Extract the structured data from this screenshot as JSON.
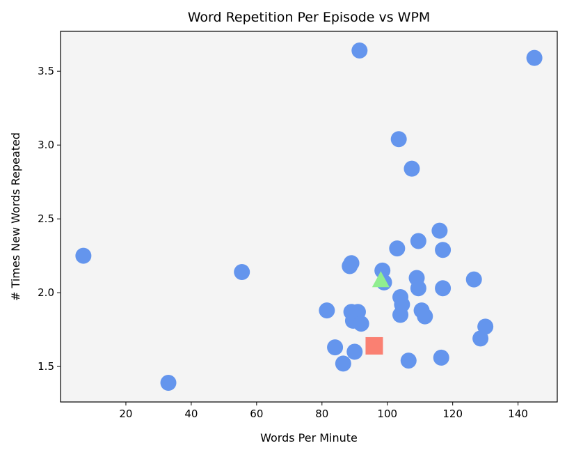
{
  "chart_data": {
    "type": "scatter",
    "title": "Word Repetition Per Episode vs WPM",
    "xlabel": "Words Per Minute",
    "ylabel": "# Times New Words Repeated",
    "xlim": [
      0,
      152
    ],
    "ylim": [
      1.26,
      3.77
    ],
    "xticks": [
      20,
      40,
      60,
      80,
      100,
      120,
      140
    ],
    "yticks": [
      1.5,
      2.0,
      2.5,
      3.0,
      3.5
    ],
    "ytick_labels": [
      "1.5",
      "2.0",
      "2.5",
      "3.0",
      "3.5"
    ],
    "grid": false,
    "background_color": "#f4f4f4",
    "series": [
      {
        "marker": "circle",
        "color": "#6495ed",
        "points": [
          [
            7,
            2.25
          ],
          [
            33,
            1.39
          ],
          [
            55.5,
            2.14
          ],
          [
            81.5,
            1.88
          ],
          [
            84,
            1.63
          ],
          [
            86.5,
            1.52
          ],
          [
            88.5,
            2.18
          ],
          [
            89,
            2.2
          ],
          [
            89,
            1.87
          ],
          [
            89.5,
            1.81
          ],
          [
            90,
            1.6
          ],
          [
            91,
            1.87
          ],
          [
            91.5,
            3.64
          ],
          [
            92,
            1.79
          ],
          [
            98.5,
            2.15
          ],
          [
            99,
            2.07
          ],
          [
            103,
            2.3
          ],
          [
            103.5,
            3.04
          ],
          [
            104,
            1.97
          ],
          [
            104,
            1.85
          ],
          [
            104.5,
            1.92
          ],
          [
            106.5,
            1.54
          ],
          [
            107.5,
            2.84
          ],
          [
            109,
            2.1
          ],
          [
            109.5,
            2.35
          ],
          [
            109.5,
            2.03
          ],
          [
            110.5,
            1.88
          ],
          [
            111.5,
            1.84
          ],
          [
            116,
            2.42
          ],
          [
            116.5,
            1.56
          ],
          [
            117,
            2.29
          ],
          [
            117,
            2.03
          ],
          [
            126.5,
            2.09
          ],
          [
            128.5,
            1.69
          ],
          [
            130,
            1.77
          ],
          [
            145,
            3.59
          ]
        ]
      },
      {
        "marker": "square",
        "color": "#fa8072",
        "points": [
          [
            96,
            1.64
          ]
        ]
      },
      {
        "marker": "triangle",
        "color": "#90ee90",
        "points": [
          [
            98,
            2.08
          ]
        ]
      }
    ]
  }
}
